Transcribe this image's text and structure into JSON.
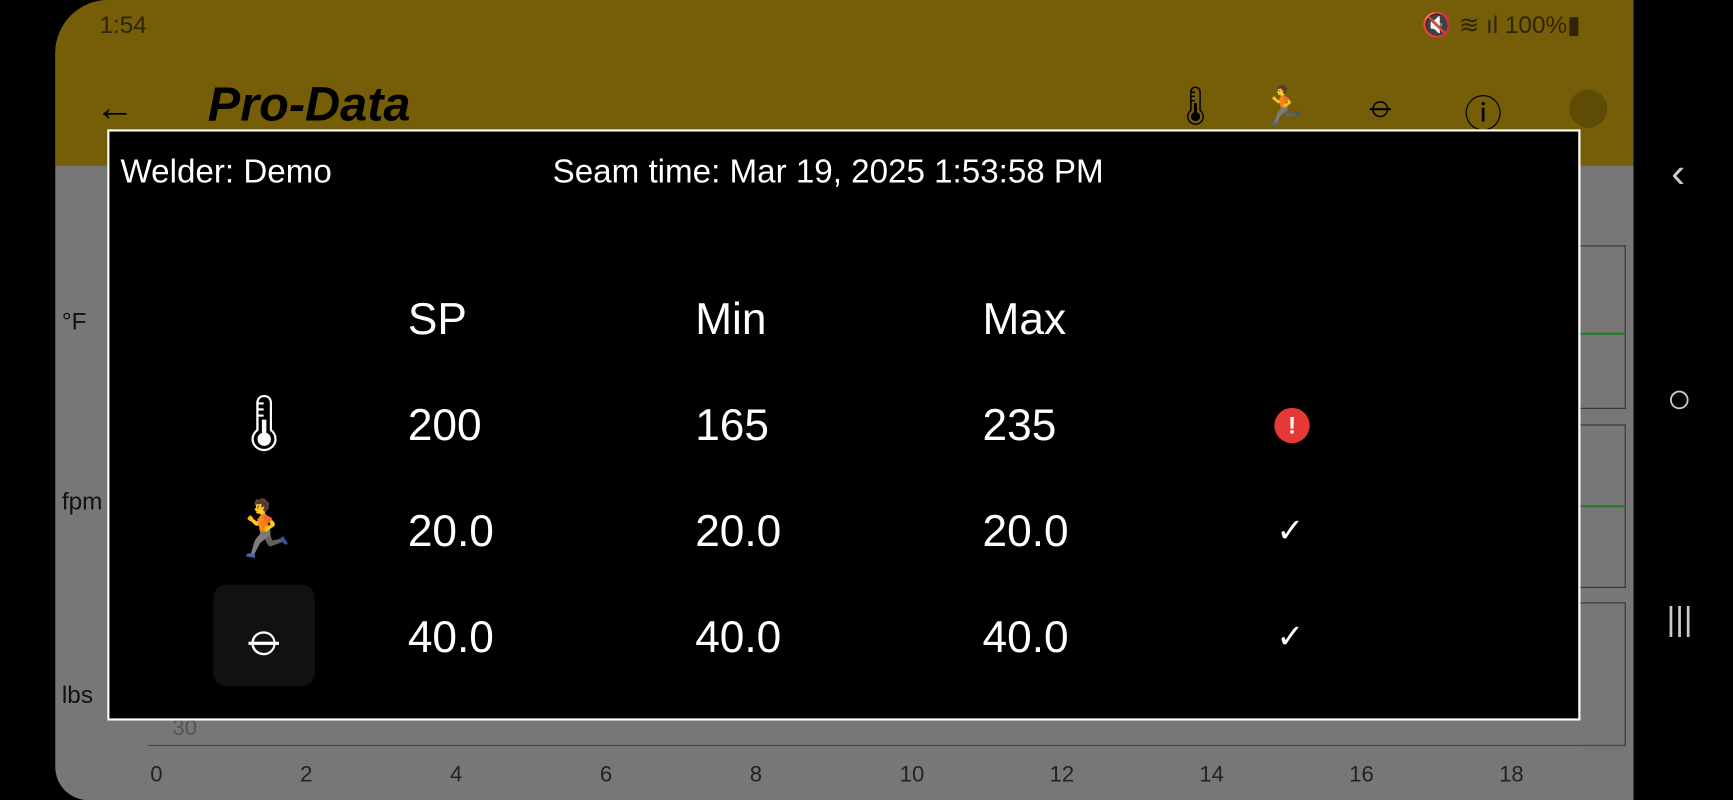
{
  "status_bar": {
    "time": "1:54",
    "indicators": "🔇 ≋ ıl 100%▮",
    "battery": "100%"
  },
  "app_bar": {
    "title": "Pro-Data",
    "back_icon": "arrow-left-icon",
    "actions": [
      "thermometer-icon",
      "running-icon",
      "rollers-icon",
      "info-icon",
      "location-icon"
    ]
  },
  "chart_bg": {
    "ylabels": [
      "°F",
      "fpm",
      "lbs"
    ],
    "xticks": [
      "0",
      "2",
      "4",
      "6",
      "8",
      "10",
      "12",
      "14",
      "16",
      "18"
    ],
    "lbs_tick": "30"
  },
  "dialog": {
    "welder": "Welder: Demo",
    "seam_time": "Seam time: Mar 19, 2025 1:53:58 PM",
    "headers": [
      "SP",
      "Min",
      "Max"
    ],
    "rows": [
      {
        "icon": "thermometer-icon",
        "sp": "200",
        "min": "165",
        "max": "235",
        "status": "error",
        "status_color": "#e53935"
      },
      {
        "icon": "running-icon",
        "sp": "20.0",
        "min": "20.0",
        "max": "20.0",
        "status": "ok"
      },
      {
        "icon": "rollers-icon",
        "sp": "40.0",
        "min": "40.0",
        "max": "40.0",
        "status": "ok"
      }
    ]
  },
  "nav_bar": {
    "back": "‹",
    "home": "○",
    "recents": "|||"
  }
}
